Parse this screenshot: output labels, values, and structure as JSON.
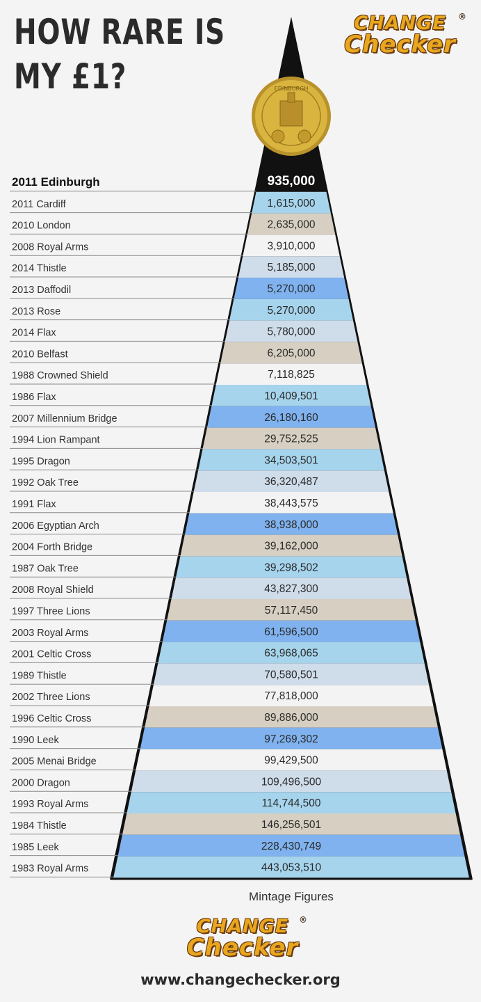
{
  "title_lines": [
    "HOW RARE IS",
    "MY £1?"
  ],
  "logo": {
    "line1": "CHANGE",
    "line2": "Checker",
    "reg": "®"
  },
  "footer_url": "www.changechecker.org",
  "colors": {
    "triangle": "#111111",
    "band_dark_blue": "#7fb2ee",
    "band_light_blue": "#a6d4ec",
    "band_tan": "#d6cfc2",
    "band_pale_blue": "#cfdcea",
    "band_white": "#f3f3f3",
    "coin_gold": "#d9b540"
  },
  "chart_data": {
    "type": "table",
    "xlabel": "Mintage Figures",
    "categories": [
      "2011 Edinburgh",
      "2011 Cardiff",
      "2010 London",
      "2008 Royal Arms",
      "2014 Thistle",
      "2013 Daffodil",
      "2013 Rose",
      "2014 Flax",
      "2010 Belfast",
      "1988 Crowned Shield",
      "1986 Flax",
      "2007 Millennium Bridge",
      "1994 Lion Rampant",
      "1995 Dragon",
      "1992 Oak Tree",
      "1991 Flax",
      "2006 Egyptian Arch",
      "2004 Forth Bridge",
      "1987 Oak Tree",
      "2008 Royal Shield",
      "1997 Three Lions",
      "2003 Royal Arms",
      "2001 Celtic Cross",
      "1989 Thistle",
      "2002 Three Lions",
      "1996 Celtic Cross",
      "1990 Leek",
      "2005 Menai Bridge",
      "2000 Dragon",
      "1993 Royal Arms",
      "1984 Thistle",
      "1985 Leek",
      "1983 Royal Arms"
    ],
    "values": [
      935000,
      1615000,
      2635000,
      3910000,
      5185000,
      5270000,
      5270000,
      5780000,
      6205000,
      7118825,
      10409501,
      26180160,
      29752525,
      34503501,
      36320487,
      38443575,
      38938000,
      39162000,
      39298502,
      43827300,
      57117450,
      61596500,
      63968065,
      70580501,
      77818000,
      89886000,
      97269302,
      99429500,
      109496500,
      114744500,
      146256501,
      228430749,
      443053510
    ],
    "labels": [
      "935,000",
      "1,615,000",
      "2,635,000",
      "3,910,000",
      "5,185,000",
      "5,270,000",
      "5,270,000",
      "5,780,000",
      "6,205,000",
      "7,118,825",
      "10,409,501",
      "26,180,160",
      "29,752,525",
      "34,503,501",
      "36,320,487",
      "38,443,575",
      "38,938,000",
      "39,162,000",
      "39,298,502",
      "43,827,300",
      "57,117,450",
      "61,596,500",
      "63,968,065",
      "70,580,501",
      "77,818,000",
      "89,886,000",
      "97,269,302",
      "99,429,500",
      "109,496,500",
      "114,744,500",
      "146,256,501",
      "228,430,749",
      "443,053,510"
    ],
    "band_colors": [
      "black",
      "light_blue",
      "tan",
      "white",
      "pale_blue",
      "dark_blue",
      "light_blue",
      "pale_blue",
      "tan",
      "white",
      "light_blue",
      "dark_blue",
      "tan",
      "light_blue",
      "pale_blue",
      "white",
      "dark_blue",
      "tan",
      "light_blue",
      "pale_blue",
      "tan",
      "dark_blue",
      "light_blue",
      "pale_blue",
      "white",
      "tan",
      "dark_blue",
      "white",
      "pale_blue",
      "light_blue",
      "tan",
      "dark_blue",
      "light_blue"
    ],
    "coin": {
      "text": "EDINBURGH"
    }
  }
}
